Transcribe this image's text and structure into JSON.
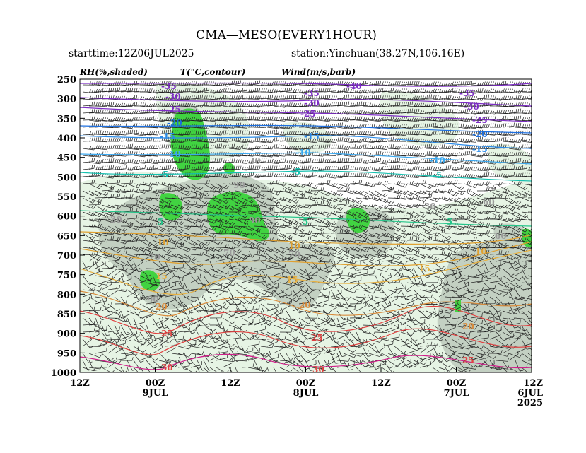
{
  "title": "CMA—MESO(EVERY1HOUR)",
  "starttime": "starttime:12Z06JUL2025",
  "station": "station:Yinchuan(38.27N,106.16E)",
  "legend": {
    "rh": "RH(%,shaded)",
    "temp": "T(°C,contour)",
    "wind": "Wind(m/s,barb)"
  },
  "colors": {
    "rh_light": "#e6f4e4",
    "rh_mid": "#c3d0c2",
    "rh_high": "#41d341",
    "temp_cold": "#7c2cc4",
    "temp_cool": "#1d6fe0",
    "temp_mid": "#17c0b0",
    "temp_warm": "#e0a030",
    "temp_hot": "#e04040",
    "temp_hottest": "#d01f8a"
  },
  "chart_data": {
    "type": "time-height cross section",
    "x_axis": {
      "direction": "reversed (latest on left)",
      "ticks": [
        {
          "label": "12Z",
          "sub": "",
          "year": ""
        },
        {
          "label": "00Z",
          "sub": "9JUL",
          "year": ""
        },
        {
          "label": "12Z",
          "sub": "",
          "year": ""
        },
        {
          "label": "00Z",
          "sub": "8JUL",
          "year": ""
        },
        {
          "label": "12Z",
          "sub": "",
          "year": ""
        },
        {
          "label": "00Z",
          "sub": "7JUL",
          "year": ""
        },
        {
          "label": "12Z",
          "sub": "6JUL",
          "year": "2025"
        }
      ]
    },
    "y_axis": {
      "unit": "hPa",
      "ticks": [
        250,
        300,
        350,
        400,
        450,
        500,
        550,
        600,
        650,
        700,
        750,
        800,
        850,
        900,
        950,
        1000
      ],
      "range": [
        250,
        1000
      ]
    },
    "temperature_contours": [
      {
        "value": -40,
        "label": "-40"
      },
      {
        "value": -35,
        "label": "-35"
      },
      {
        "value": -30,
        "label": "-30"
      },
      {
        "value": -25,
        "label": "-25"
      },
      {
        "value": -20,
        "label": "-20"
      },
      {
        "value": -15,
        "label": "-15"
      },
      {
        "value": -10,
        "label": "-10"
      },
      {
        "value": -5,
        "label": "-5"
      },
      {
        "value": 5,
        "label": "5"
      },
      {
        "value": 10,
        "label": "10"
      },
      {
        "value": 15,
        "label": "15"
      },
      {
        "value": 20,
        "label": "20"
      },
      {
        "value": 25,
        "label": "25"
      },
      {
        "value": 30,
        "label": "30"
      }
    ],
    "rh_labels": [
      "30",
      "60",
      "70",
      "90"
    ]
  }
}
